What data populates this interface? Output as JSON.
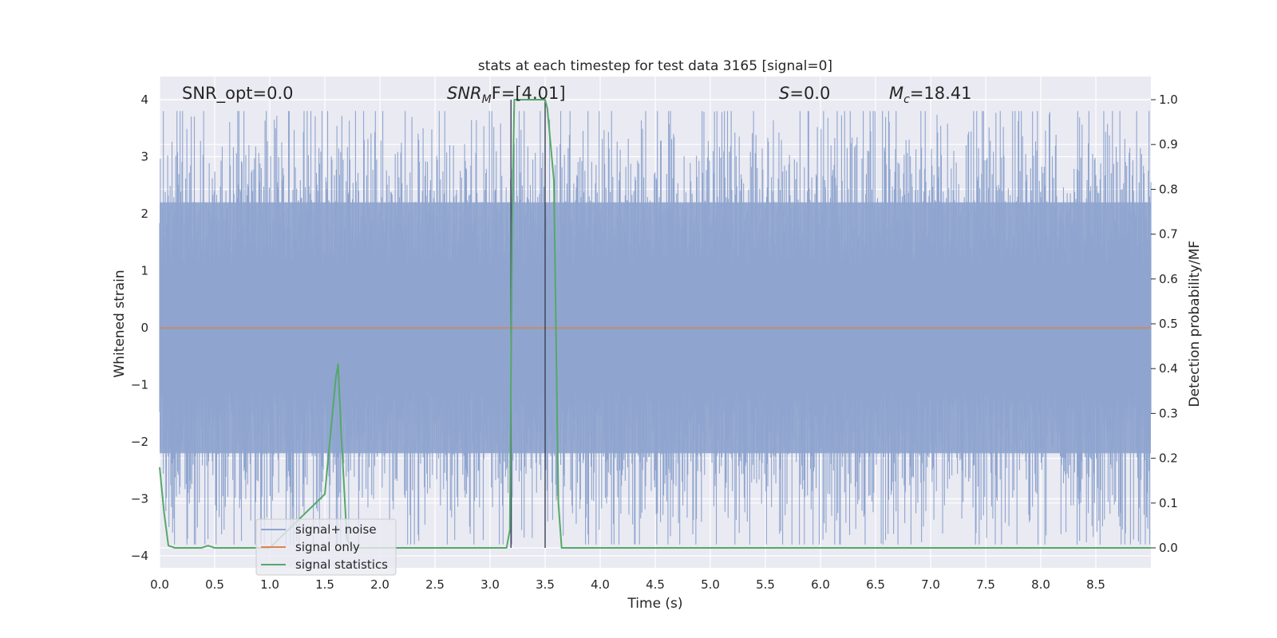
{
  "chart_data": {
    "type": "line",
    "title": "stats at each timestep for test data 3165 [signal=0]",
    "xlabel": "Time (s)",
    "ylabel_left": "Whitened strain",
    "ylabel_right": "Detection probability/MF",
    "xlim": [
      0.0,
      9.0
    ],
    "ylim_left": [
      -4.25,
      4.4
    ],
    "ylim_right": [
      -0.05,
      1.05
    ],
    "x_ticks": [
      "0.0",
      "0.5",
      "1.0",
      "1.5",
      "2.0",
      "2.5",
      "3.0",
      "3.5",
      "4.0",
      "4.5",
      "5.0",
      "5.5",
      "6.0",
      "6.5",
      "7.0",
      "7.5",
      "8.0",
      "8.5"
    ],
    "y_ticks_left": [
      "4",
      "3",
      "2",
      "1",
      "0",
      "−1",
      "−2",
      "−3",
      "−4"
    ],
    "y_ticks_right": [
      "1.0",
      "0.9",
      "0.8",
      "0.7",
      "0.6",
      "0.5",
      "0.4",
      "0.3",
      "0.2",
      "0.1",
      "0.0"
    ],
    "grid": true,
    "legend_position": "lower-left",
    "annotations": {
      "snr_opt": "SNR_opt=0.0",
      "snr_mf_base": "SNR",
      "snr_mf_sub": "M",
      "snr_mf_tail": "F=[4.01]",
      "s_var": "S",
      "s_tail": "=0.0",
      "mc_var": "M",
      "mc_sub": "c",
      "mc_tail": "=18.41"
    },
    "series": [
      {
        "name": "signal+ noise",
        "color": "#8fa5cf",
        "description_kind": "noise",
        "typical_envelope": [
          -2.2,
          2.2
        ],
        "peak_range": [
          -3.8,
          3.8
        ]
      },
      {
        "name": "signal only",
        "color": "#dd8452",
        "values_constant": 0.0
      },
      {
        "name": "signal statistics",
        "color": "#55a868",
        "axis": "right",
        "x": [
          0.0,
          0.04,
          0.08,
          0.14,
          0.25,
          0.38,
          0.44,
          0.5,
          0.6,
          1.0,
          1.5,
          1.55,
          1.6,
          1.62,
          1.65,
          1.7,
          1.75,
          2.0,
          2.5,
          3.0,
          3.15,
          3.18,
          3.2,
          3.22,
          3.25,
          3.3,
          3.4,
          3.5,
          3.52,
          3.55,
          3.58,
          3.62,
          3.65,
          4.0,
          5.0,
          6.0,
          7.0,
          8.0,
          9.0
        ],
        "y": [
          0.18,
          0.08,
          0.005,
          0.0,
          0.0,
          0.0,
          0.005,
          0.0,
          0.0,
          0.0,
          0.12,
          0.25,
          0.38,
          0.41,
          0.25,
          0.02,
          0.0,
          0.0,
          0.0,
          0.0,
          0.0,
          0.04,
          0.72,
          1.0,
          1.0,
          1.0,
          1.0,
          1.0,
          0.98,
          0.9,
          0.82,
          0.1,
          0.0,
          0.0,
          0.0,
          0.0,
          0.0,
          0.0,
          0.0
        ]
      }
    ],
    "vertical_lines_x": [
      3.19,
      3.5
    ]
  }
}
